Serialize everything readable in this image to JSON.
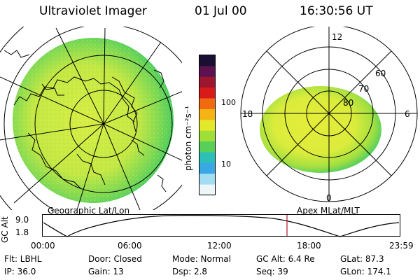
{
  "header": {
    "instrument": "Ultraviolet Imager",
    "date": "01 Jul 00",
    "time": "16:30:56 UT"
  },
  "left_panel": {
    "label": "Geographic Lat/Lon",
    "fill_color": "#c9ea42",
    "edge_color": "#42d05a"
  },
  "color_bar": {
    "unit_label": "photon cm⁻²s⁻¹",
    "tick_labels": [
      "100",
      "10"
    ],
    "colors_top_to_bottom": [
      "#1a0f33",
      "#5c124f",
      "#9c1630",
      "#d81a1a",
      "#f26a10",
      "#f5b414",
      "#e3e82a",
      "#9fe038",
      "#58cf58",
      "#2cc0b8",
      "#3ba8e6",
      "#a4dcf2",
      "#eef6fa"
    ]
  },
  "right_panel": {
    "label": "Apex MLat/MLT",
    "mlt_labels": {
      "top": "12",
      "left": "18",
      "right": "6",
      "bottom": "0"
    },
    "lat_labels": [
      "60",
      "70",
      "80"
    ]
  },
  "timeline": {
    "axis_title": "GC Alt",
    "y_labels": [
      "9.0",
      "1.8"
    ],
    "x_labels": [
      "00:00",
      "06:00",
      "12:00",
      "18:00",
      "23:59"
    ],
    "marker_color": "#b01030"
  },
  "status": {
    "row1": [
      {
        "key": "flt",
        "text": "Flt: LBHL"
      },
      {
        "key": "door",
        "text": "Door: Closed"
      },
      {
        "key": "mode",
        "text": "Mode: Normal"
      },
      {
        "key": "gcalt",
        "text": "GC Alt: 6.4 Re"
      },
      {
        "key": "glat",
        "text": "GLat:  87.3"
      }
    ],
    "row2": [
      {
        "key": "ip",
        "text": "IP: 36.0"
      },
      {
        "key": "gain",
        "text": "Gain: 13"
      },
      {
        "key": "dsp",
        "text": "Dsp:    2.8"
      },
      {
        "key": "seq",
        "text": "Seq: 39"
      },
      {
        "key": "glon",
        "text": "GLon: 174.1"
      }
    ]
  }
}
